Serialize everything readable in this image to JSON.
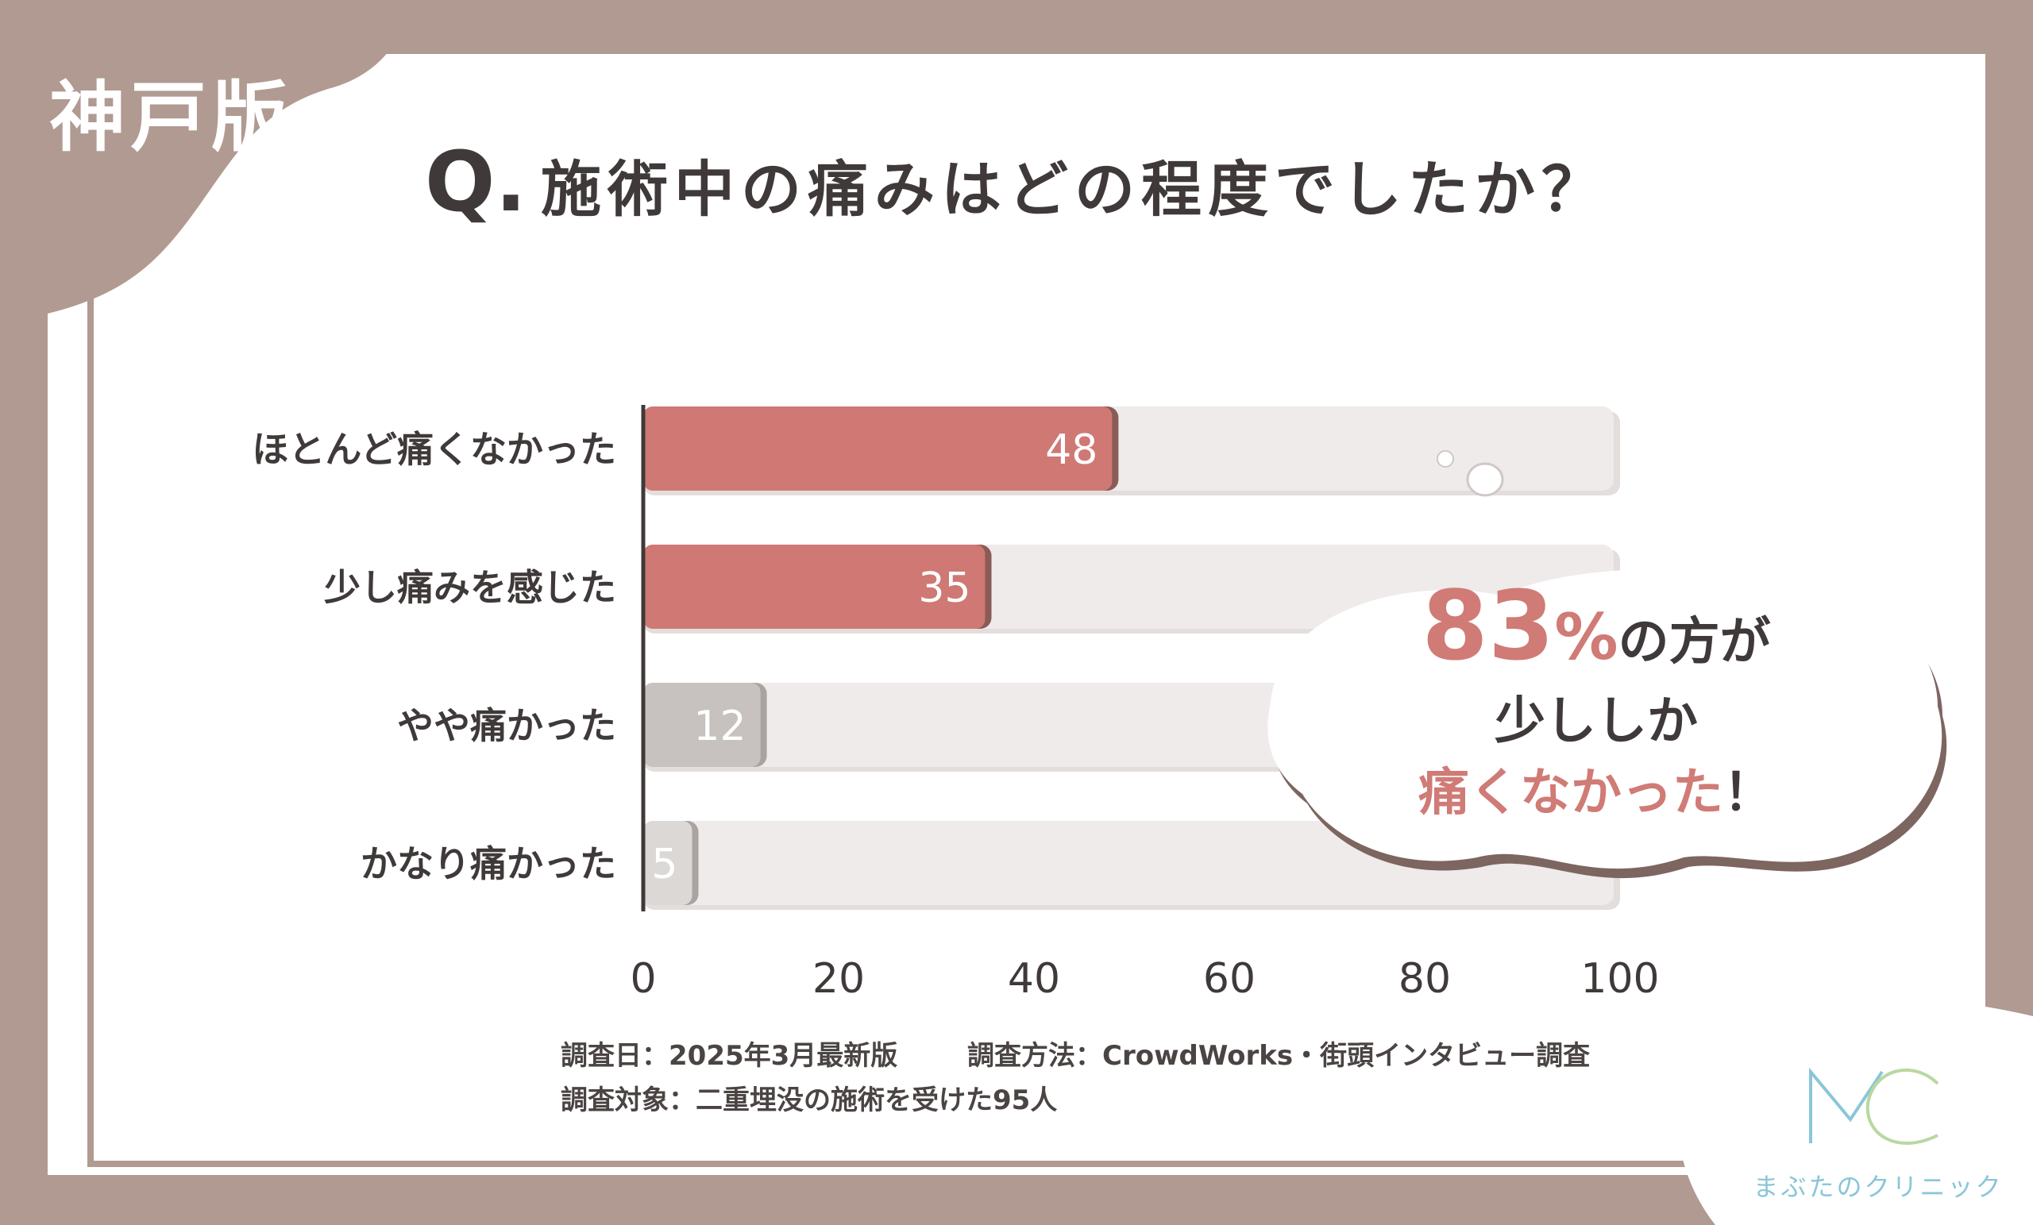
{
  "region_label": "神戸版",
  "question": {
    "prefix": "Q.",
    "text": "施術中の痛みはどの程度でしたか？"
  },
  "chart_data": {
    "type": "bar",
    "orientation": "horizontal",
    "categories": [
      "ほとんど痛くなかった",
      "少し痛みを感じた",
      "やや痛かった",
      "かなり痛かった"
    ],
    "values": [
      48,
      35,
      12,
      5
    ],
    "value_labels": [
      "48",
      "35",
      "12",
      "5"
    ],
    "xlim": [
      0,
      100
    ],
    "xticks": [
      "0",
      "20",
      "40",
      "60",
      "80",
      "100"
    ],
    "grid": false,
    "colors": {
      "highlight": "#cf7874",
      "muted": "#c7c2c0",
      "muted_light": "#dcd8d6",
      "track": "#efebea",
      "axis": "#3f3a39"
    }
  },
  "callout": {
    "percent": "83",
    "percent_sign": "%",
    "line1_suffix": "の方が",
    "line2": "少ししか",
    "line3_pink": "痛くなかった",
    "line3_end": "！"
  },
  "notes": {
    "date": "調査日：2025年3月最新版",
    "method": "調査方法：CrowdWorks・街頭インタビュー調査",
    "target": "調査対象：二重埋没の施術を受けた95人"
  },
  "logo": {
    "mark": "MC",
    "name": "まぶたのクリニック"
  }
}
